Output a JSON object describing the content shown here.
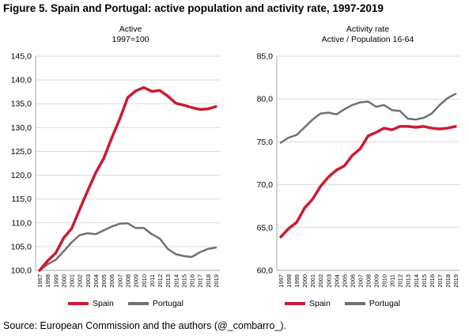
{
  "figure_title": "Figure 5. Spain and Portugal: active population and activity rate, 1997-2019",
  "source": "Source: European Commission and the authors (@_combarro_).",
  "colors": {
    "spain": "#cc1a33",
    "portugal": "#707070",
    "grid": "#d9d9d9",
    "axis": "#a6a6a6"
  },
  "chart_data": [
    {
      "type": "line",
      "title": "Active",
      "subtitle": "1997=100",
      "x": [
        "1997",
        "1998",
        "1999",
        "2000",
        "2001",
        "2002",
        "2003",
        "2004",
        "2005",
        "2006",
        "2007",
        "2008",
        "2009",
        "2010",
        "2011",
        "2012",
        "2013",
        "2014",
        "2015",
        "2016",
        "2017",
        "2018",
        "2019"
      ],
      "ylim": [
        100,
        145
      ],
      "yticks": [
        "100,0",
        "105,0",
        "110,0",
        "115,0",
        "120,0",
        "125,0",
        "130,0",
        "135,0",
        "140,0",
        "145,0"
      ],
      "grid": true,
      "legend_position": "bottom",
      "series": [
        {
          "name": "Spain",
          "values": [
            100.0,
            102.0,
            103.6,
            106.8,
            108.8,
            112.8,
            116.7,
            120.5,
            123.5,
            127.8,
            131.8,
            136.3,
            137.7,
            138.4,
            137.6,
            137.8,
            136.6,
            135.1,
            134.7,
            134.2,
            133.8,
            133.9,
            134.4
          ]
        },
        {
          "name": "Portugal",
          "values": [
            100.0,
            101.3,
            102.2,
            104.0,
            105.9,
            107.4,
            107.8,
            107.6,
            108.4,
            109.2,
            109.8,
            109.9,
            108.9,
            108.9,
            107.6,
            106.7,
            104.5,
            103.4,
            103.0,
            102.8,
            103.8,
            104.5,
            104.8
          ]
        }
      ]
    },
    {
      "type": "line",
      "title": "Activity rate",
      "subtitle": "Active / Population 16-64",
      "x": [
        "1997",
        "1998",
        "1999",
        "2000",
        "2001",
        "2002",
        "2003",
        "2004",
        "2005",
        "2006",
        "2007",
        "2008",
        "2009",
        "2010",
        "2011",
        "2012",
        "2013",
        "2014",
        "2015",
        "2016",
        "2017",
        "2018",
        "2019"
      ],
      "ylim": [
        60,
        85
      ],
      "yticks": [
        "60,0",
        "65,0",
        "70,0",
        "75,0",
        "80,0",
        "85,0"
      ],
      "grid": true,
      "legend_position": "bottom",
      "series": [
        {
          "name": "Spain",
          "values": [
            63.9,
            64.9,
            65.6,
            67.3,
            68.3,
            69.8,
            70.9,
            71.7,
            72.2,
            73.4,
            74.2,
            75.7,
            76.1,
            76.6,
            76.4,
            76.8,
            76.8,
            76.7,
            76.8,
            76.6,
            76.5,
            76.6,
            76.8
          ]
        },
        {
          "name": "Portugal",
          "values": [
            74.9,
            75.5,
            75.8,
            76.7,
            77.6,
            78.3,
            78.4,
            78.2,
            78.8,
            79.3,
            79.6,
            79.7,
            79.1,
            79.3,
            78.7,
            78.6,
            77.7,
            77.6,
            77.8,
            78.3,
            79.3,
            80.1,
            80.6
          ]
        }
      ]
    }
  ]
}
